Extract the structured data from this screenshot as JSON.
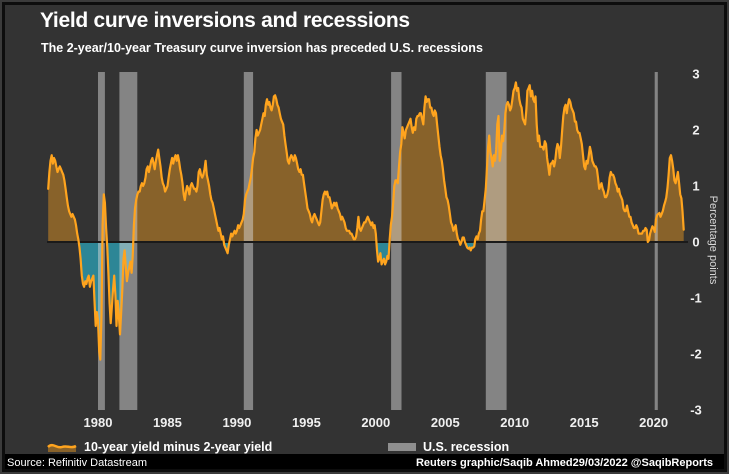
{
  "header": {
    "title": "Yield curve inversions and recessions",
    "subtitle": "The 2-year/10-year Treasury curve inversion has preceded U.S. recessions"
  },
  "legend": {
    "items": [
      {
        "label": "10-year yield minus 2-year yield",
        "swatch": "line-area"
      },
      {
        "label": "U.S. recession",
        "swatch": "rect"
      }
    ]
  },
  "footer": {
    "source": "Source: Refinitiv Datastream",
    "credit": "Reuters graphic/Saqib Ahmed29/03/2022 @SaqibReports"
  },
  "colors": {
    "background": "#333333",
    "frame_border": "#0d0d0d",
    "title_text": "#ffffff",
    "axis_text": "#f0f0f0",
    "ylabel_text": "#d9d9d9",
    "line": "#ffa41e",
    "area_positive": "rgba(255,164,30,0.42)",
    "area_negative": "#2d8696",
    "recession_band": "rgba(214,214,214,0.5)",
    "recession_swatch": "#8f8f8f",
    "zero_line": "#1a1a1a",
    "footer_background": "#000000",
    "footer_text": "#ffffff"
  },
  "chart_data": {
    "type": "area",
    "title": "Yield curve inversions and recessions",
    "subtitle": "The 2-year/10-year Treasury curve inversion has preceded U.S. recessions",
    "xlabel": "",
    "ylabel": "Percentage points",
    "ylim": [
      -3,
      3
    ],
    "xlim": [
      1976.33,
      2022.25
    ],
    "y_ticks": [
      3,
      2,
      1,
      0,
      -1,
      -2,
      -3
    ],
    "x_ticks": [
      1980,
      1985,
      1990,
      1995,
      2000,
      2005,
      2010,
      2015,
      2020
    ],
    "grid": false,
    "legend_position": "bottom",
    "recessions": [
      [
        1980.0,
        1980.5
      ],
      [
        1981.54,
        1982.83
      ],
      [
        1990.5,
        1991.17
      ],
      [
        2001.1,
        2001.85
      ],
      [
        2007.92,
        2009.42
      ],
      [
        2020.08,
        2020.3
      ]
    ],
    "series": [
      {
        "name": "10-year yield minus 2-year yield",
        "unit": "percentage points",
        "frequency": "monthly",
        "start_decimal_year": 1976.4167,
        "values": [
          0.95,
          1.25,
          1.45,
          1.55,
          1.4,
          1.5,
          1.45,
          1.35,
          1.25,
          1.3,
          1.35,
          1.3,
          1.25,
          1.2,
          1.1,
          0.95,
          0.8,
          0.65,
          0.55,
          0.5,
          0.45,
          0.5,
          0.45,
          0.4,
          0.3,
          0.15,
          0.05,
          -0.1,
          -0.3,
          -0.6,
          -0.75,
          -0.8,
          -0.7,
          -0.75,
          -0.65,
          -0.6,
          -0.8,
          -0.7,
          -0.65,
          -0.6,
          -1.05,
          -1.5,
          -1.25,
          -1.4,
          -1.95,
          -2.1,
          -1.3,
          0.3,
          0.85,
          0.7,
          0.25,
          -0.1,
          -0.55,
          -1.1,
          -1.45,
          -1.15,
          -0.85,
          -0.6,
          -0.95,
          -1.5,
          -1.05,
          -1.3,
          -1.65,
          -1.25,
          -0.85,
          -0.3,
          -0.15,
          -0.45,
          -0.7,
          -0.55,
          -0.45,
          -0.35,
          -0.55,
          -0.25,
          0.3,
          0.6,
          0.75,
          0.85,
          0.9,
          0.9,
          1.0,
          1.05,
          1.0,
          1.05,
          1.15,
          1.3,
          1.35,
          1.25,
          1.35,
          1.45,
          1.5,
          1.4,
          1.3,
          1.45,
          1.55,
          1.65,
          1.5,
          1.35,
          1.15,
          1.05,
          1.0,
          0.9,
          0.95,
          1.0,
          1.15,
          1.3,
          1.4,
          1.5,
          1.4,
          1.5,
          1.55,
          1.45,
          1.55,
          1.45,
          1.3,
          1.2,
          1.05,
          0.85,
          0.75,
          0.9,
          1.0,
          0.95,
          0.85,
          1.0,
          1.05,
          1.0,
          0.95,
          0.95,
          0.9,
          1.0,
          1.25,
          1.3,
          1.2,
          1.15,
          1.2,
          1.3,
          1.45,
          1.2,
          1.1,
          1.0,
          0.85,
          0.75,
          0.7,
          0.6,
          0.5,
          0.4,
          0.3,
          0.2,
          0.25,
          0.15,
          0.05,
          0.1,
          -0.05,
          -0.1,
          -0.15,
          -0.2,
          -0.05,
          0.05,
          0.15,
          0.1,
          0.15,
          0.2,
          0.15,
          0.2,
          0.3,
          0.25,
          0.3,
          0.35,
          0.4,
          0.5,
          0.75,
          0.85,
          0.9,
          0.95,
          1.05,
          1.15,
          1.3,
          1.5,
          1.6,
          1.85,
          2.0,
          1.9,
          1.95,
          2.0,
          2.1,
          2.2,
          2.3,
          2.25,
          2.45,
          2.55,
          2.45,
          2.5,
          2.4,
          2.35,
          2.45,
          2.6,
          2.62,
          2.55,
          2.45,
          2.4,
          2.3,
          2.2,
          2.15,
          2.1,
          1.9,
          1.75,
          1.6,
          1.45,
          1.4,
          1.5,
          1.55,
          1.5,
          1.45,
          1.55,
          1.5,
          1.4,
          1.3,
          1.25,
          1.3,
          1.2,
          1.2,
          1.05,
          0.9,
          0.75,
          0.6,
          0.55,
          0.5,
          0.4,
          0.35,
          0.45,
          0.5,
          0.45,
          0.4,
          0.35,
          0.3,
          0.35,
          0.55,
          0.75,
          0.85,
          0.9,
          0.85,
          0.9,
          0.8,
          0.8,
          0.7,
          0.6,
          0.65,
          0.7,
          0.65,
          0.7,
          0.6,
          0.55,
          0.5,
          0.4,
          0.45,
          0.4,
          0.35,
          0.25,
          0.2,
          0.2,
          0.2,
          0.15,
          0.15,
          0.1,
          0.05,
          0.05,
          0.1,
          0.25,
          0.45,
          0.25,
          0.2,
          0.25,
          0.3,
          0.35,
          0.35,
          0.4,
          0.45,
          0.4,
          0.35,
          0.3,
          0.35,
          0.25,
          0.3,
          0.15,
          -0.15,
          -0.35,
          -0.3,
          -0.2,
          -0.4,
          -0.35,
          -0.3,
          -0.4,
          -0.35,
          -0.25,
          -0.3,
          0.05,
          0.3,
          0.45,
          0.7,
          1.0,
          1.1,
          1.1,
          1.05,
          1.35,
          1.6,
          1.75,
          2.05,
          1.95,
          1.85,
          2.0,
          2.05,
          2.1,
          2.15,
          2.2,
          2.05,
          1.95,
          2.05,
          2.0,
          2.2,
          2.25,
          2.25,
          2.3,
          2.3,
          2.2,
          2.1,
          2.4,
          2.6,
          2.5,
          2.55,
          2.55,
          2.4,
          2.4,
          2.3,
          2.25,
          2.35,
          2.3,
          2.1,
          1.9,
          1.7,
          1.55,
          1.45,
          1.3,
          1.1,
          0.95,
          0.8,
          0.75,
          0.65,
          0.5,
          0.35,
          0.3,
          0.2,
          0.25,
          0.3,
          0.15,
          0.05,
          0.02,
          -0.05,
          0.0,
          0.08,
          0.08,
          0.0,
          -0.05,
          -0.1,
          -0.12,
          -0.1,
          -0.15,
          -0.1,
          -0.1,
          -0.08,
          0.05,
          0.1,
          0.05,
          0.15,
          0.2,
          0.4,
          0.55,
          0.55,
          0.75,
          0.95,
          1.3,
          1.7,
          1.9,
          1.6,
          1.5,
          1.35,
          1.55,
          1.45,
          1.65,
          2.1,
          2.25,
          1.45,
          1.6,
          1.9,
          1.8,
          2.0,
          2.3,
          2.45,
          2.5,
          2.45,
          2.35,
          2.4,
          2.55,
          2.7,
          2.75,
          2.85,
          2.7,
          2.75,
          2.55,
          2.45,
          2.4,
          2.2,
          2.15,
          2.1,
          2.35,
          2.7,
          2.75,
          2.8,
          2.6,
          2.7,
          2.55,
          2.5,
          2.6,
          2.1,
          1.8,
          1.9,
          1.7,
          1.7,
          1.7,
          1.65,
          1.8,
          1.75,
          1.5,
          1.35,
          1.2,
          1.4,
          1.4,
          1.45,
          1.35,
          1.45,
          1.65,
          1.75,
          1.7,
          1.5,
          1.7,
          2.0,
          2.25,
          2.4,
          2.45,
          2.3,
          2.45,
          2.55,
          2.5,
          2.4,
          2.35,
          2.3,
          2.15,
          2.15,
          2.0,
          1.95,
          1.95,
          1.85,
          1.75,
          1.55,
          1.35,
          1.3,
          1.45,
          1.4,
          1.55,
          1.7,
          1.6,
          1.45,
          1.4,
          1.35,
          1.35,
          1.3,
          1.15,
          0.95,
          1.0,
          1.05,
          0.95,
          0.9,
          0.8,
          0.8,
          0.85,
          0.95,
          1.15,
          1.25,
          1.2,
          1.2,
          1.15,
          1.05,
          1.0,
          0.9,
          0.95,
          0.85,
          0.8,
          0.75,
          0.6,
          0.55,
          0.55,
          0.65,
          0.55,
          0.45,
          0.45,
          0.35,
          0.3,
          0.25,
          0.25,
          0.3,
          0.25,
          0.15,
          0.15,
          0.15,
          0.15,
          0.2,
          0.2,
          0.25,
          0.22,
          0.0,
          0.03,
          0.15,
          0.22,
          0.28,
          0.25,
          0.18,
          0.4,
          0.48,
          0.5,
          0.52,
          0.45,
          0.5,
          0.56,
          0.65,
          0.72,
          0.8,
          0.97,
          1.2,
          1.5,
          1.55,
          1.45,
          1.3,
          1.1,
          1.05,
          1.15,
          1.25,
          1.05,
          0.85,
          0.78,
          0.55,
          0.22
        ]
      }
    ]
  }
}
